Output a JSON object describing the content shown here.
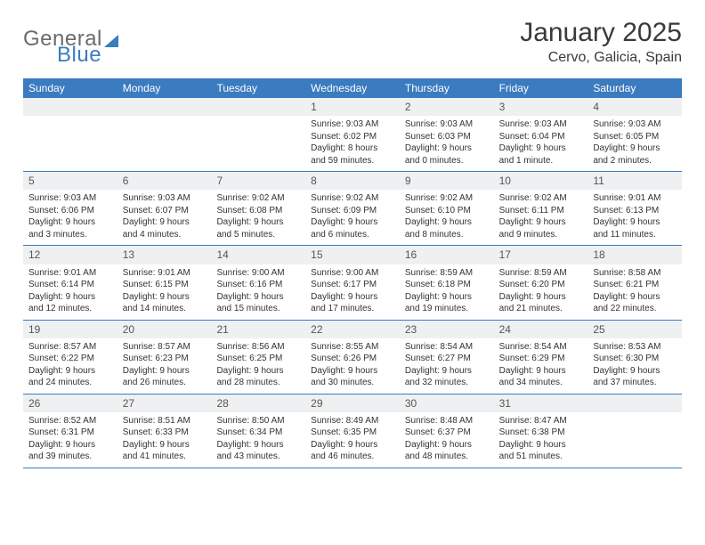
{
  "brand": {
    "word1": "General",
    "word2": "Blue"
  },
  "title": "January 2025",
  "location": "Cervo, Galicia, Spain",
  "colors": {
    "header_bg": "#3b7bbf",
    "header_text": "#ffffff",
    "daynum_bg": "#eef0f2",
    "border": "#3b7bbf",
    "text": "#333333"
  },
  "weekdays": [
    "Sunday",
    "Monday",
    "Tuesday",
    "Wednesday",
    "Thursday",
    "Friday",
    "Saturday"
  ],
  "weeks": [
    [
      {
        "empty": true
      },
      {
        "empty": true
      },
      {
        "empty": true
      },
      {
        "num": "1",
        "sunrise": "Sunrise: 9:03 AM",
        "sunset": "Sunset: 6:02 PM",
        "daylight": "Daylight: 8 hours and 59 minutes."
      },
      {
        "num": "2",
        "sunrise": "Sunrise: 9:03 AM",
        "sunset": "Sunset: 6:03 PM",
        "daylight": "Daylight: 9 hours and 0 minutes."
      },
      {
        "num": "3",
        "sunrise": "Sunrise: 9:03 AM",
        "sunset": "Sunset: 6:04 PM",
        "daylight": "Daylight: 9 hours and 1 minute."
      },
      {
        "num": "4",
        "sunrise": "Sunrise: 9:03 AM",
        "sunset": "Sunset: 6:05 PM",
        "daylight": "Daylight: 9 hours and 2 minutes."
      }
    ],
    [
      {
        "num": "5",
        "sunrise": "Sunrise: 9:03 AM",
        "sunset": "Sunset: 6:06 PM",
        "daylight": "Daylight: 9 hours and 3 minutes."
      },
      {
        "num": "6",
        "sunrise": "Sunrise: 9:03 AM",
        "sunset": "Sunset: 6:07 PM",
        "daylight": "Daylight: 9 hours and 4 minutes."
      },
      {
        "num": "7",
        "sunrise": "Sunrise: 9:02 AM",
        "sunset": "Sunset: 6:08 PM",
        "daylight": "Daylight: 9 hours and 5 minutes."
      },
      {
        "num": "8",
        "sunrise": "Sunrise: 9:02 AM",
        "sunset": "Sunset: 6:09 PM",
        "daylight": "Daylight: 9 hours and 6 minutes."
      },
      {
        "num": "9",
        "sunrise": "Sunrise: 9:02 AM",
        "sunset": "Sunset: 6:10 PM",
        "daylight": "Daylight: 9 hours and 8 minutes."
      },
      {
        "num": "10",
        "sunrise": "Sunrise: 9:02 AM",
        "sunset": "Sunset: 6:11 PM",
        "daylight": "Daylight: 9 hours and 9 minutes."
      },
      {
        "num": "11",
        "sunrise": "Sunrise: 9:01 AM",
        "sunset": "Sunset: 6:13 PM",
        "daylight": "Daylight: 9 hours and 11 minutes."
      }
    ],
    [
      {
        "num": "12",
        "sunrise": "Sunrise: 9:01 AM",
        "sunset": "Sunset: 6:14 PM",
        "daylight": "Daylight: 9 hours and 12 minutes."
      },
      {
        "num": "13",
        "sunrise": "Sunrise: 9:01 AM",
        "sunset": "Sunset: 6:15 PM",
        "daylight": "Daylight: 9 hours and 14 minutes."
      },
      {
        "num": "14",
        "sunrise": "Sunrise: 9:00 AM",
        "sunset": "Sunset: 6:16 PM",
        "daylight": "Daylight: 9 hours and 15 minutes."
      },
      {
        "num": "15",
        "sunrise": "Sunrise: 9:00 AM",
        "sunset": "Sunset: 6:17 PM",
        "daylight": "Daylight: 9 hours and 17 minutes."
      },
      {
        "num": "16",
        "sunrise": "Sunrise: 8:59 AM",
        "sunset": "Sunset: 6:18 PM",
        "daylight": "Daylight: 9 hours and 19 minutes."
      },
      {
        "num": "17",
        "sunrise": "Sunrise: 8:59 AM",
        "sunset": "Sunset: 6:20 PM",
        "daylight": "Daylight: 9 hours and 21 minutes."
      },
      {
        "num": "18",
        "sunrise": "Sunrise: 8:58 AM",
        "sunset": "Sunset: 6:21 PM",
        "daylight": "Daylight: 9 hours and 22 minutes."
      }
    ],
    [
      {
        "num": "19",
        "sunrise": "Sunrise: 8:57 AM",
        "sunset": "Sunset: 6:22 PM",
        "daylight": "Daylight: 9 hours and 24 minutes."
      },
      {
        "num": "20",
        "sunrise": "Sunrise: 8:57 AM",
        "sunset": "Sunset: 6:23 PM",
        "daylight": "Daylight: 9 hours and 26 minutes."
      },
      {
        "num": "21",
        "sunrise": "Sunrise: 8:56 AM",
        "sunset": "Sunset: 6:25 PM",
        "daylight": "Daylight: 9 hours and 28 minutes."
      },
      {
        "num": "22",
        "sunrise": "Sunrise: 8:55 AM",
        "sunset": "Sunset: 6:26 PM",
        "daylight": "Daylight: 9 hours and 30 minutes."
      },
      {
        "num": "23",
        "sunrise": "Sunrise: 8:54 AM",
        "sunset": "Sunset: 6:27 PM",
        "daylight": "Daylight: 9 hours and 32 minutes."
      },
      {
        "num": "24",
        "sunrise": "Sunrise: 8:54 AM",
        "sunset": "Sunset: 6:29 PM",
        "daylight": "Daylight: 9 hours and 34 minutes."
      },
      {
        "num": "25",
        "sunrise": "Sunrise: 8:53 AM",
        "sunset": "Sunset: 6:30 PM",
        "daylight": "Daylight: 9 hours and 37 minutes."
      }
    ],
    [
      {
        "num": "26",
        "sunrise": "Sunrise: 8:52 AM",
        "sunset": "Sunset: 6:31 PM",
        "daylight": "Daylight: 9 hours and 39 minutes."
      },
      {
        "num": "27",
        "sunrise": "Sunrise: 8:51 AM",
        "sunset": "Sunset: 6:33 PM",
        "daylight": "Daylight: 9 hours and 41 minutes."
      },
      {
        "num": "28",
        "sunrise": "Sunrise: 8:50 AM",
        "sunset": "Sunset: 6:34 PM",
        "daylight": "Daylight: 9 hours and 43 minutes."
      },
      {
        "num": "29",
        "sunrise": "Sunrise: 8:49 AM",
        "sunset": "Sunset: 6:35 PM",
        "daylight": "Daylight: 9 hours and 46 minutes."
      },
      {
        "num": "30",
        "sunrise": "Sunrise: 8:48 AM",
        "sunset": "Sunset: 6:37 PM",
        "daylight": "Daylight: 9 hours and 48 minutes."
      },
      {
        "num": "31",
        "sunrise": "Sunrise: 8:47 AM",
        "sunset": "Sunset: 6:38 PM",
        "daylight": "Daylight: 9 hours and 51 minutes."
      },
      {
        "empty": true
      }
    ]
  ]
}
